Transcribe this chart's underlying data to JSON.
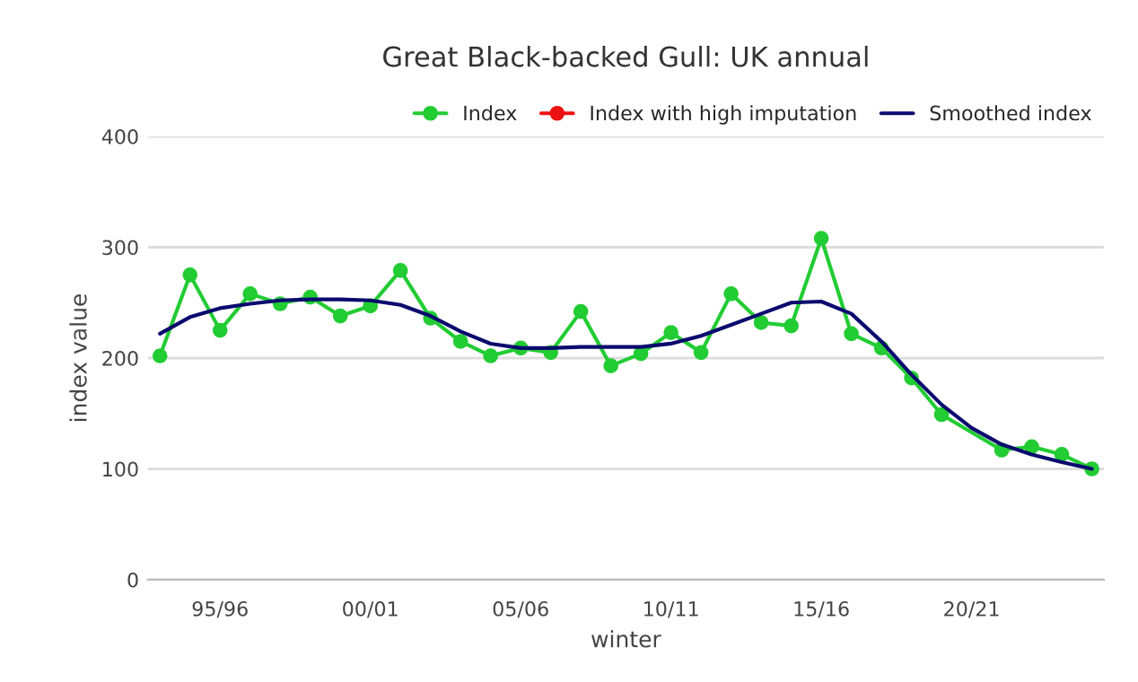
{
  "chart_data": {
    "type": "line",
    "title": "Great Black-backed Gull: UK annual",
    "xlabel": "winter",
    "ylabel": "index value",
    "categories": [
      null,
      null,
      "95/96",
      null,
      null,
      null,
      null,
      "00/01",
      null,
      null,
      null,
      null,
      "05/06",
      null,
      null,
      null,
      null,
      "10/11",
      null,
      null,
      null,
      null,
      "15/16",
      null,
      null,
      null,
      null,
      "20/21",
      null,
      null,
      null,
      null
    ],
    "series": [
      {
        "name": "Index",
        "color": "#22cc33",
        "marker": "circle",
        "values": [
          202,
          275,
          225,
          258,
          249,
          255,
          238,
          247,
          279,
          236,
          215,
          202,
          209,
          205,
          242,
          193,
          204,
          223,
          205,
          258,
          232,
          229,
          308,
          222,
          209,
          182,
          149,
          null,
          117,
          120,
          113,
          100
        ]
      },
      {
        "name": "Index with high imputation",
        "color": "#ee1111",
        "marker": "circle",
        "values": [
          null,
          null,
          null,
          null,
          null,
          null,
          null,
          null,
          null,
          null,
          null,
          null,
          null,
          null,
          null,
          null,
          null,
          null,
          null,
          null,
          null,
          null,
          null,
          null,
          null,
          null,
          null,
          null,
          null,
          null,
          null,
          null
        ]
      },
      {
        "name": "Smoothed index",
        "color": "#0a0a6e",
        "marker": "none",
        "values": [
          222,
          237,
          245,
          249,
          252,
          253,
          253,
          252,
          248,
          238,
          224,
          213,
          209,
          209,
          210,
          210,
          210,
          213,
          220,
          230,
          240,
          250,
          251,
          240,
          215,
          185,
          158,
          137,
          122,
          113,
          106,
          100
        ]
      }
    ],
    "ylim": [
      0,
      400
    ],
    "yticks": [
      0,
      100,
      200,
      300,
      400
    ],
    "grid": "y",
    "legend": "top right"
  }
}
